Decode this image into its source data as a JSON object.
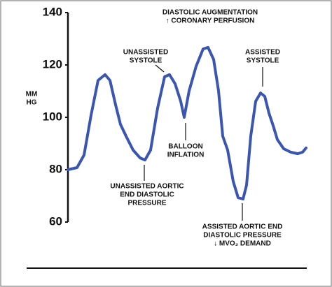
{
  "chart_data": {
    "type": "line",
    "y_label": [
      "MM",
      "HG"
    ],
    "ylim": [
      60,
      140
    ],
    "yticks": [
      60,
      80,
      100,
      120,
      140
    ],
    "xlim": [
      0,
      340
    ],
    "color": "#3a56b0",
    "x": [
      0,
      13,
      23,
      33,
      43,
      53,
      60,
      68,
      75,
      83,
      93,
      103,
      110,
      118,
      128,
      138,
      145,
      153,
      161,
      166,
      173,
      183,
      193,
      200,
      208,
      215,
      221,
      228,
      236,
      243,
      250,
      255,
      261,
      268,
      275,
      281,
      287,
      293,
      299,
      308,
      318,
      328,
      335,
      340
    ],
    "values": [
      80,
      80.8,
      85.6,
      100.8,
      114.1,
      116.3,
      114.1,
      104.8,
      97.3,
      92.8,
      87.5,
      84.5,
      83.7,
      87.5,
      103.5,
      115.5,
      116.3,
      112.8,
      106.1,
      100,
      110.1,
      119.5,
      126.1,
      126.7,
      122.1,
      110.1,
      92.8,
      87.5,
      75.5,
      69.3,
      68.8,
      74.1,
      92.8,
      106.1,
      109.3,
      108,
      101.6,
      96.8,
      91.5,
      88,
      86.7,
      86.1,
      86.7,
      88.3
    ],
    "annotations": [
      [
        "DIASTOLIC AUGMENTATION",
        "↑ CORONARY  PERFUSION"
      ],
      [
        "UNASSISTED",
        "SYSTOLE"
      ],
      [
        "ASSISTED",
        "SYSTOLE"
      ],
      [
        "BALLOON",
        "INFLATION"
      ],
      [
        "UNASSISTED AORTIC",
        "END DIASTOLIC",
        "PRESSURE"
      ],
      [
        "ASSISTED AORTIC END",
        "DIASTOLIC PRESSURE",
        "↓ MVO₂ DEMAND"
      ]
    ]
  }
}
